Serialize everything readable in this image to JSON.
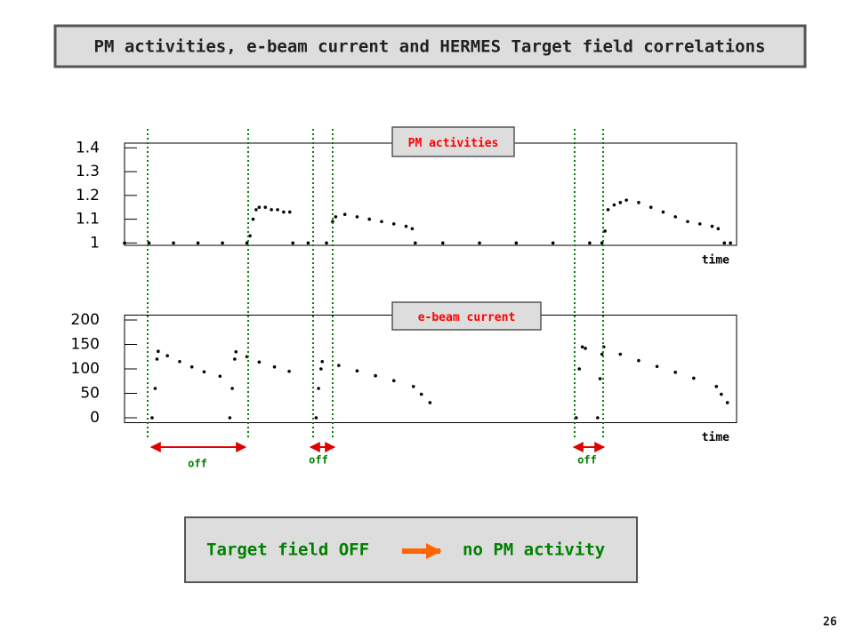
{
  "title": "PM activities, e-beam current and HERMES Target field correlations",
  "chart_data": [
    {
      "type": "scatter",
      "title": "PM activities",
      "xlabel": "time",
      "color": "#000000",
      "title_color": "#ff0000",
      "xlim": [
        0,
        100
      ],
      "ylim": [
        0.99,
        1.42
      ],
      "yticks": [
        1,
        1.1,
        1.2,
        1.3,
        1.4
      ],
      "x": [
        0,
        4,
        8,
        12,
        16,
        20,
        20.5,
        21,
        21.5,
        22,
        23,
        24,
        25,
        26,
        27,
        27.5,
        30,
        33,
        34,
        34.5,
        36,
        38,
        40,
        42,
        44,
        46,
        47,
        47.5,
        52,
        58,
        64,
        70,
        76,
        78,
        78.5,
        79,
        80,
        81,
        82,
        84,
        86,
        88,
        90,
        92,
        94,
        96,
        97,
        98,
        99
      ],
      "values": [
        1.0,
        1.0,
        1.0,
        1.0,
        1.0,
        1.0,
        1.03,
        1.1,
        1.14,
        1.15,
        1.15,
        1.14,
        1.14,
        1.13,
        1.13,
        1.0,
        1.0,
        1.0,
        1.09,
        1.11,
        1.12,
        1.11,
        1.1,
        1.09,
        1.08,
        1.07,
        1.06,
        1.0,
        1.0,
        1.0,
        1.0,
        1.0,
        1.0,
        1.0,
        1.05,
        1.14,
        1.16,
        1.17,
        1.18,
        1.17,
        1.15,
        1.13,
        1.11,
        1.09,
        1.08,
        1.07,
        1.06,
        1.0,
        1.0
      ]
    },
    {
      "type": "scatter",
      "title": "e-beam current",
      "xlabel": "time",
      "color": "#000000",
      "title_color": "#ff0000",
      "xlim": [
        0,
        100
      ],
      "ylim": [
        -10,
        210
      ],
      "yticks": [
        0,
        50,
        100,
        150,
        200
      ],
      "x": [
        4.5,
        5,
        5.3,
        5.5,
        7,
        9,
        11,
        13,
        15.6,
        17.2,
        17.6,
        18,
        18.2,
        20,
        22,
        24.5,
        26.9,
        31.3,
        31.7,
        32.1,
        32.3,
        35,
        38,
        41,
        44,
        47.2,
        48.5,
        49.9,
        73.8,
        74.3,
        74.8,
        75.3,
        77.3,
        77.7,
        78,
        78.3,
        81,
        84,
        87,
        90,
        93,
        96.7,
        97.5,
        98.5
      ],
      "values": [
        0,
        60,
        120,
        136,
        127,
        115,
        104,
        94,
        85,
        0,
        60,
        120,
        135,
        125,
        114,
        104,
        95,
        0,
        60,
        100,
        115,
        107,
        96,
        86,
        76,
        64,
        48,
        31,
        0,
        100,
        145,
        142,
        0,
        80,
        130,
        145,
        130,
        117,
        105,
        93,
        81,
        64,
        48,
        31
      ]
    }
  ],
  "annotations": [
    "off",
    "off",
    "off"
  ],
  "conclusion": {
    "left": "Target field OFF",
    "right": "no PM activity"
  },
  "page_number": "26"
}
